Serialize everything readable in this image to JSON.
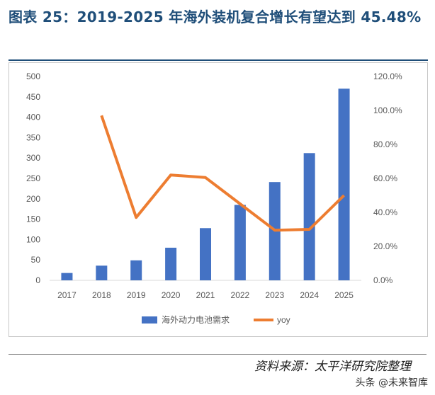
{
  "title": "图表 25：2019-2025 年海外装机复合增长有望达到 45.48%",
  "source": "资料来源：太平洋研究院整理",
  "watermark": "头条 @未来智库",
  "colors": {
    "bar": "#4472c4",
    "line": "#ed7d31",
    "title": "#1f4e79"
  },
  "chart_data": {
    "type": "bar",
    "categories": [
      "2017",
      "2018",
      "2019",
      "2020",
      "2021",
      "2022",
      "2023",
      "2024",
      "2025"
    ],
    "series": [
      {
        "name": "海外动力电池需求",
        "type": "bar",
        "axis": "left",
        "values": [
          18,
          36,
          49,
          80,
          128,
          185,
          241,
          312,
          470
        ]
      },
      {
        "name": "yoy",
        "type": "line",
        "axis": "right",
        "values": [
          null,
          97.0,
          37.0,
          62.0,
          60.5,
          45.0,
          29.5,
          30.0,
          50.0
        ]
      }
    ],
    "y_left": {
      "ylim": [
        0,
        500
      ],
      "ticks": [
        "0",
        "50",
        "100",
        "150",
        "200",
        "250",
        "300",
        "350",
        "400",
        "450",
        "500"
      ]
    },
    "y_right": {
      "ylim": [
        0,
        120
      ],
      "ticks": [
        "0.0%",
        "20.0%",
        "40.0%",
        "60.0%",
        "80.0%",
        "100.0%",
        "120.0%"
      ]
    },
    "grid": false,
    "legend": "bottom"
  }
}
